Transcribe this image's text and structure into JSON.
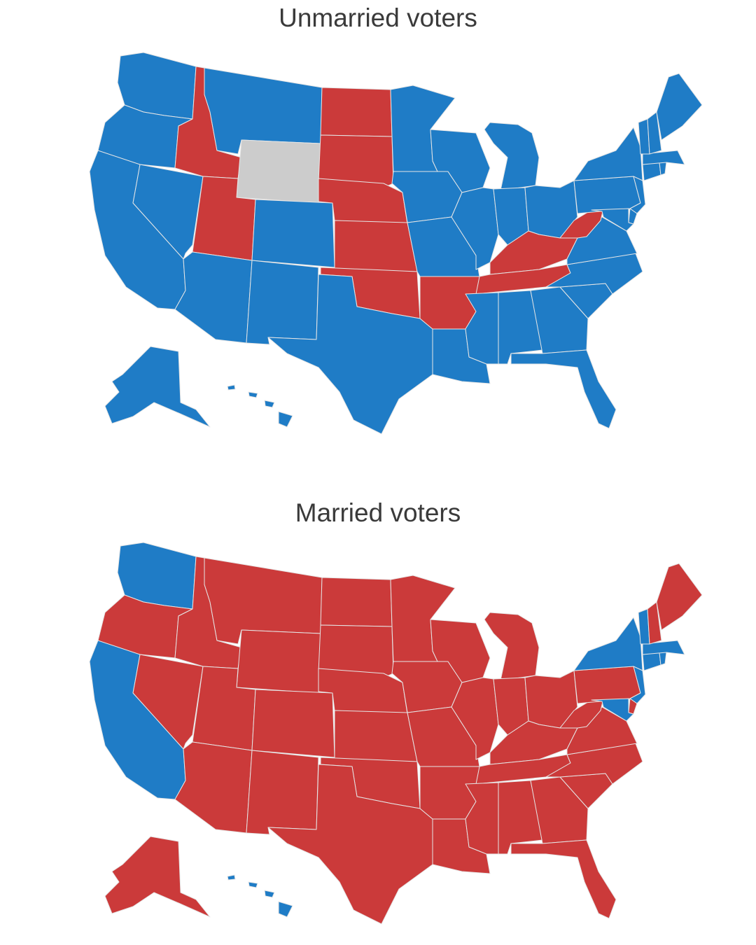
{
  "maps": [
    {
      "title": "Unmarried voters",
      "colors": {
        "blue": "#1f7cc6",
        "red": "#cb3a3a",
        "gray": "#cccccc"
      },
      "states": {
        "WA": "blue",
        "OR": "blue",
        "CA": "blue",
        "NV": "blue",
        "ID": "red",
        "MT": "blue",
        "WY": "gray",
        "UT": "red",
        "CO": "blue",
        "AZ": "blue",
        "NM": "blue",
        "ND": "red",
        "SD": "red",
        "NE": "red",
        "KS": "red",
        "OK": "red",
        "TX": "blue",
        "MN": "blue",
        "IA": "blue",
        "MO": "blue",
        "AR": "red",
        "LA": "blue",
        "WI": "blue",
        "IL": "blue",
        "MI": "blue",
        "IN": "blue",
        "OH": "blue",
        "KY": "red",
        "TN": "red",
        "MS": "blue",
        "AL": "blue",
        "GA": "blue",
        "FL": "blue",
        "SC": "blue",
        "NC": "blue",
        "VA": "blue",
        "WV": "red",
        "PA": "blue",
        "NY": "blue",
        "NJ": "blue",
        "DE": "blue",
        "MD": "blue",
        "CT": "blue",
        "RI": "blue",
        "MA": "blue",
        "VT": "blue",
        "NH": "blue",
        "ME": "blue",
        "AK": "blue",
        "HI": "blue"
      }
    },
    {
      "title": "Married voters",
      "colors": {
        "blue": "#1f7cc6",
        "red": "#cb3a3a",
        "gray": "#cccccc"
      },
      "states": {
        "WA": "blue",
        "OR": "red",
        "CA": "blue",
        "NV": "red",
        "ID": "red",
        "MT": "red",
        "WY": "red",
        "UT": "red",
        "CO": "red",
        "AZ": "red",
        "NM": "red",
        "ND": "red",
        "SD": "red",
        "NE": "red",
        "KS": "red",
        "OK": "red",
        "TX": "red",
        "MN": "red",
        "IA": "red",
        "MO": "red",
        "AR": "red",
        "LA": "red",
        "WI": "red",
        "IL": "red",
        "MI": "red",
        "IN": "red",
        "OH": "red",
        "KY": "red",
        "TN": "red",
        "MS": "red",
        "AL": "red",
        "GA": "red",
        "FL": "red",
        "SC": "red",
        "NC": "red",
        "VA": "red",
        "WV": "red",
        "PA": "red",
        "NY": "blue",
        "NJ": "blue",
        "DE": "red",
        "MD": "blue",
        "CT": "blue",
        "RI": "blue",
        "MA": "blue",
        "VT": "blue",
        "NH": "red",
        "ME": "red",
        "AK": "red",
        "HI": "blue"
      }
    }
  ]
}
